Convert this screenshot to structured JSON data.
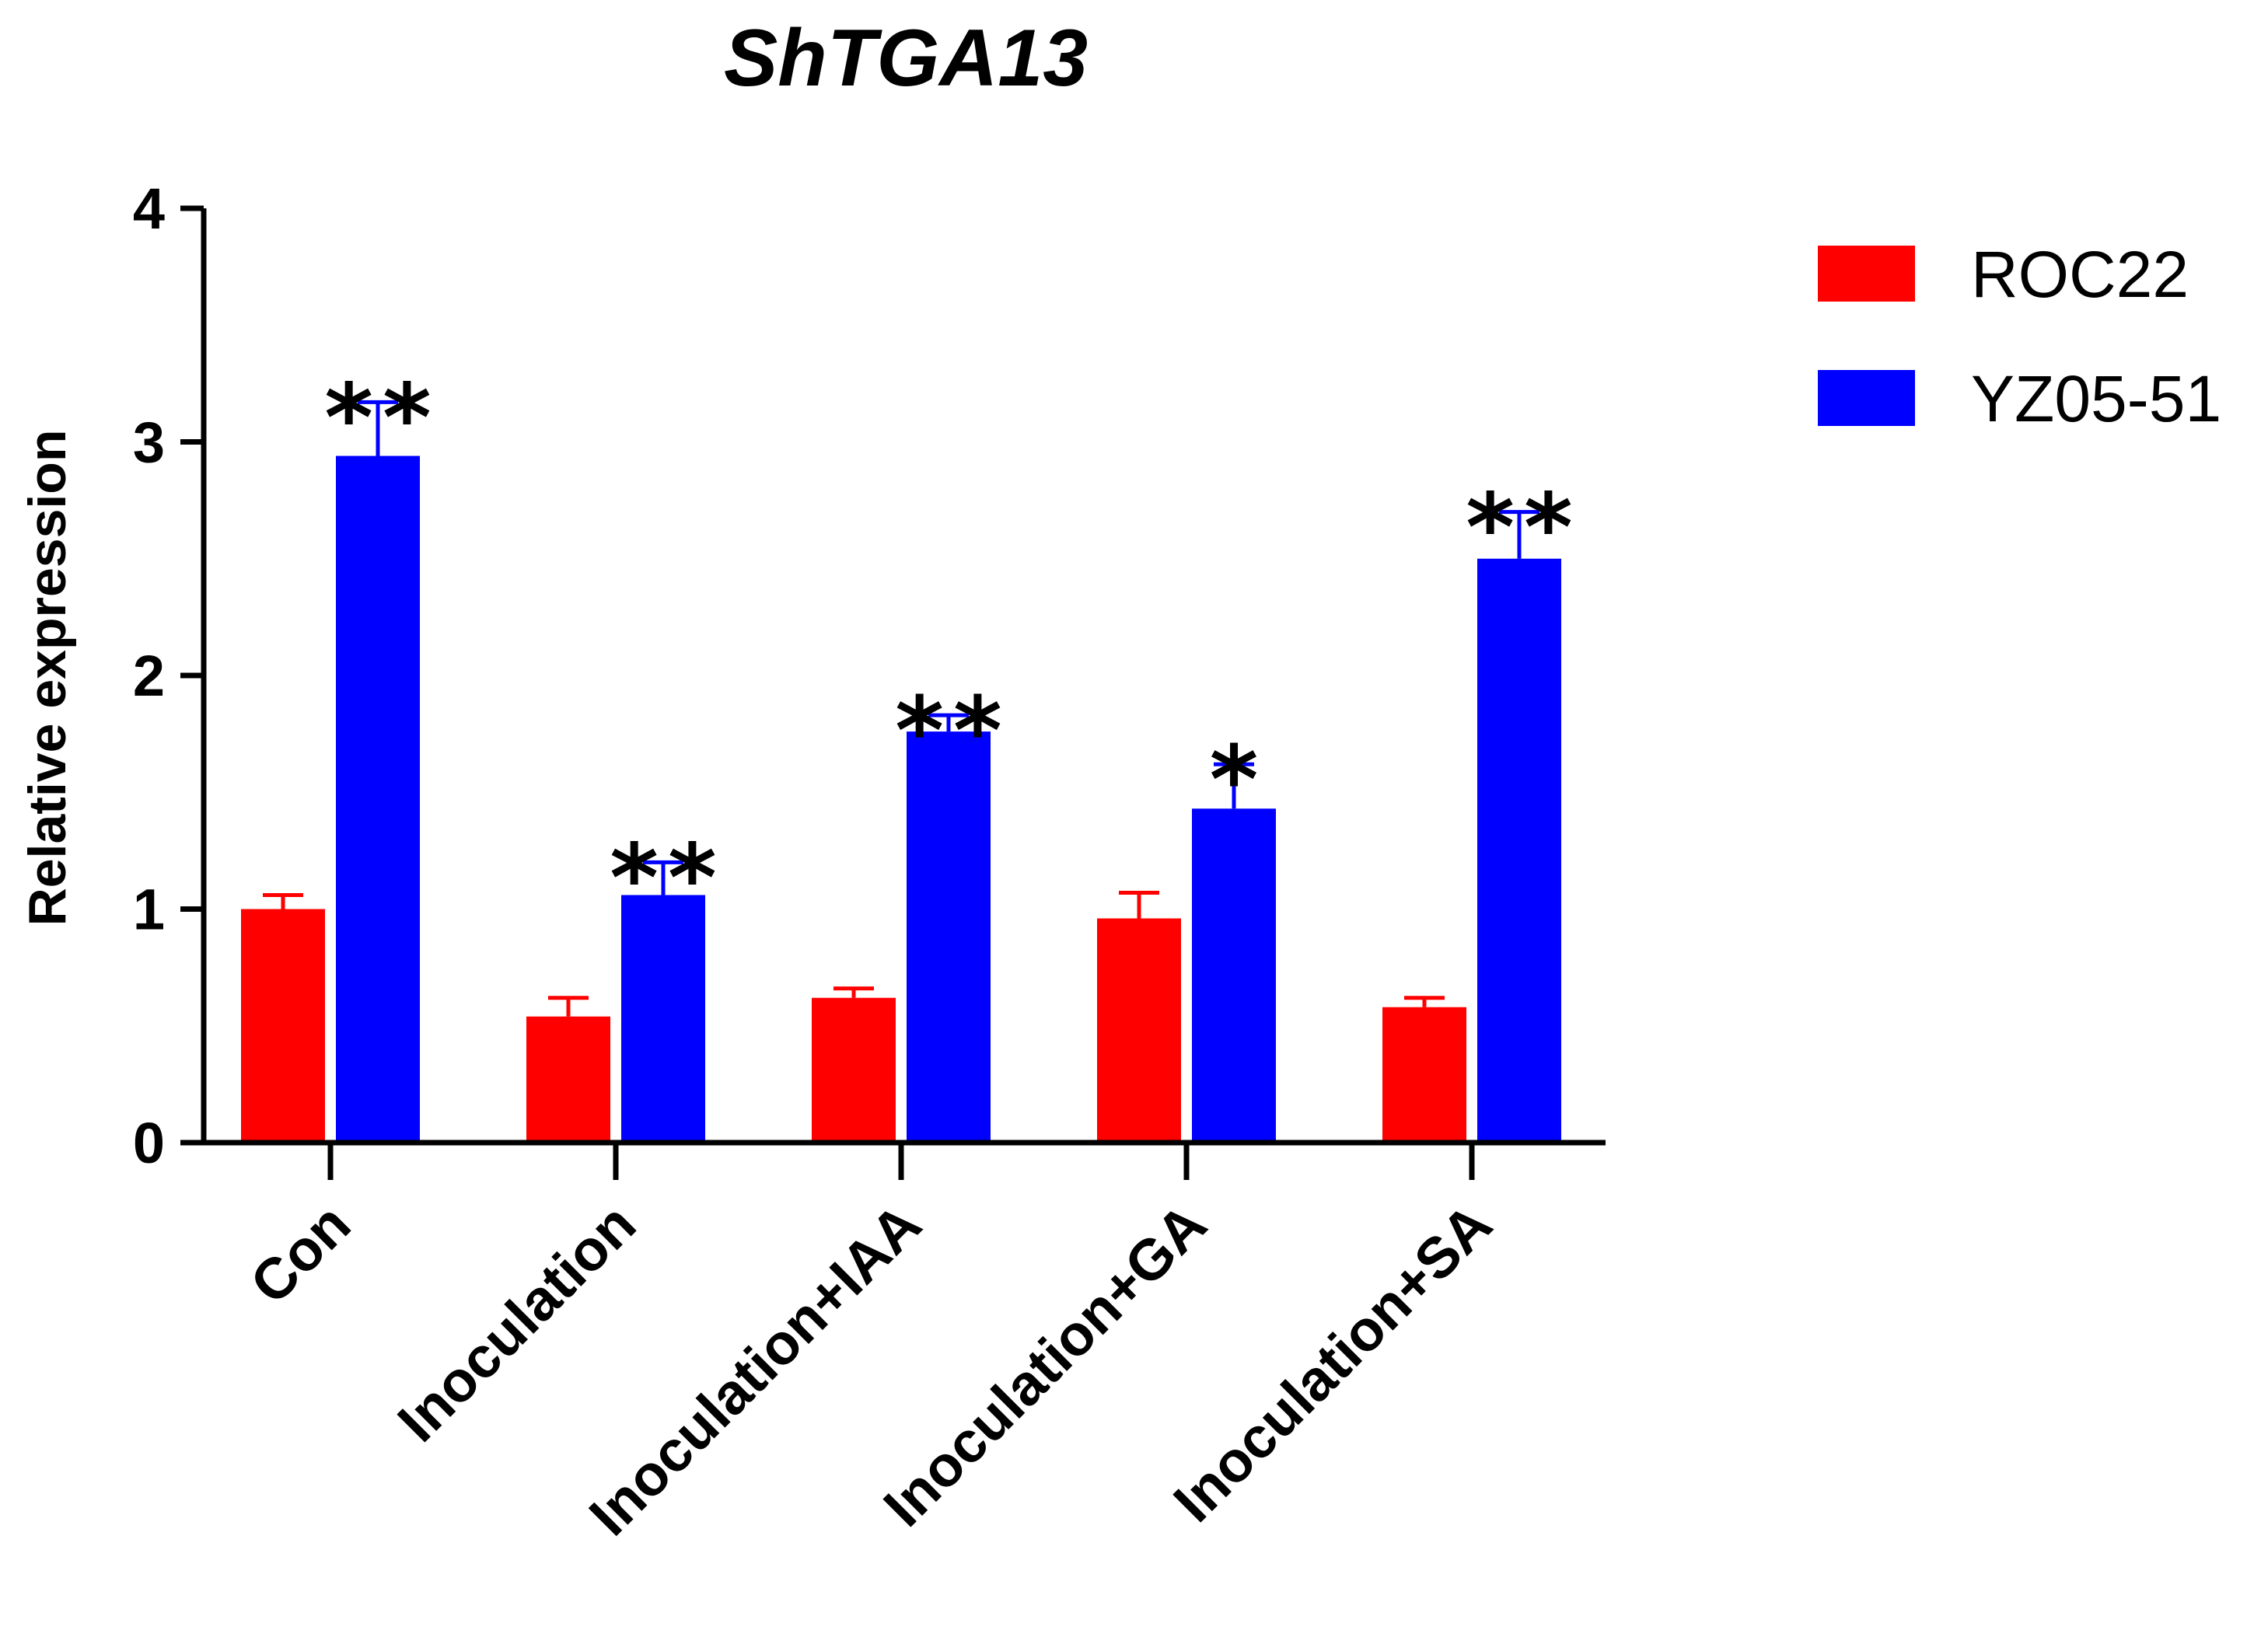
{
  "chart_data": {
    "type": "bar",
    "title": "ShTGA13",
    "xlabel": "",
    "ylabel": "Relative expression",
    "ylim": [
      0,
      4
    ],
    "yticks": [
      0,
      1,
      2,
      3,
      4
    ],
    "categories": [
      "Con",
      "Inoculation",
      "Inoculation+IAA",
      "Inoculation+GA",
      "Inoculation+SA"
    ],
    "series": [
      {
        "name": "ROC22",
        "color": "#ff0000",
        "values": [
          1.0,
          0.54,
          0.62,
          0.96,
          0.58
        ],
        "errors": [
          0.06,
          0.08,
          0.04,
          0.11,
          0.04
        ]
      },
      {
        "name": "YZ05-51",
        "color": "#0000ff",
        "values": [
          2.94,
          1.06,
          1.76,
          1.43,
          2.5
        ],
        "errors": [
          0.23,
          0.14,
          0.07,
          0.19,
          0.2
        ]
      }
    ],
    "significance": [
      "**",
      "**",
      "**",
      "*",
      "**"
    ],
    "legend_position": "top-right"
  }
}
